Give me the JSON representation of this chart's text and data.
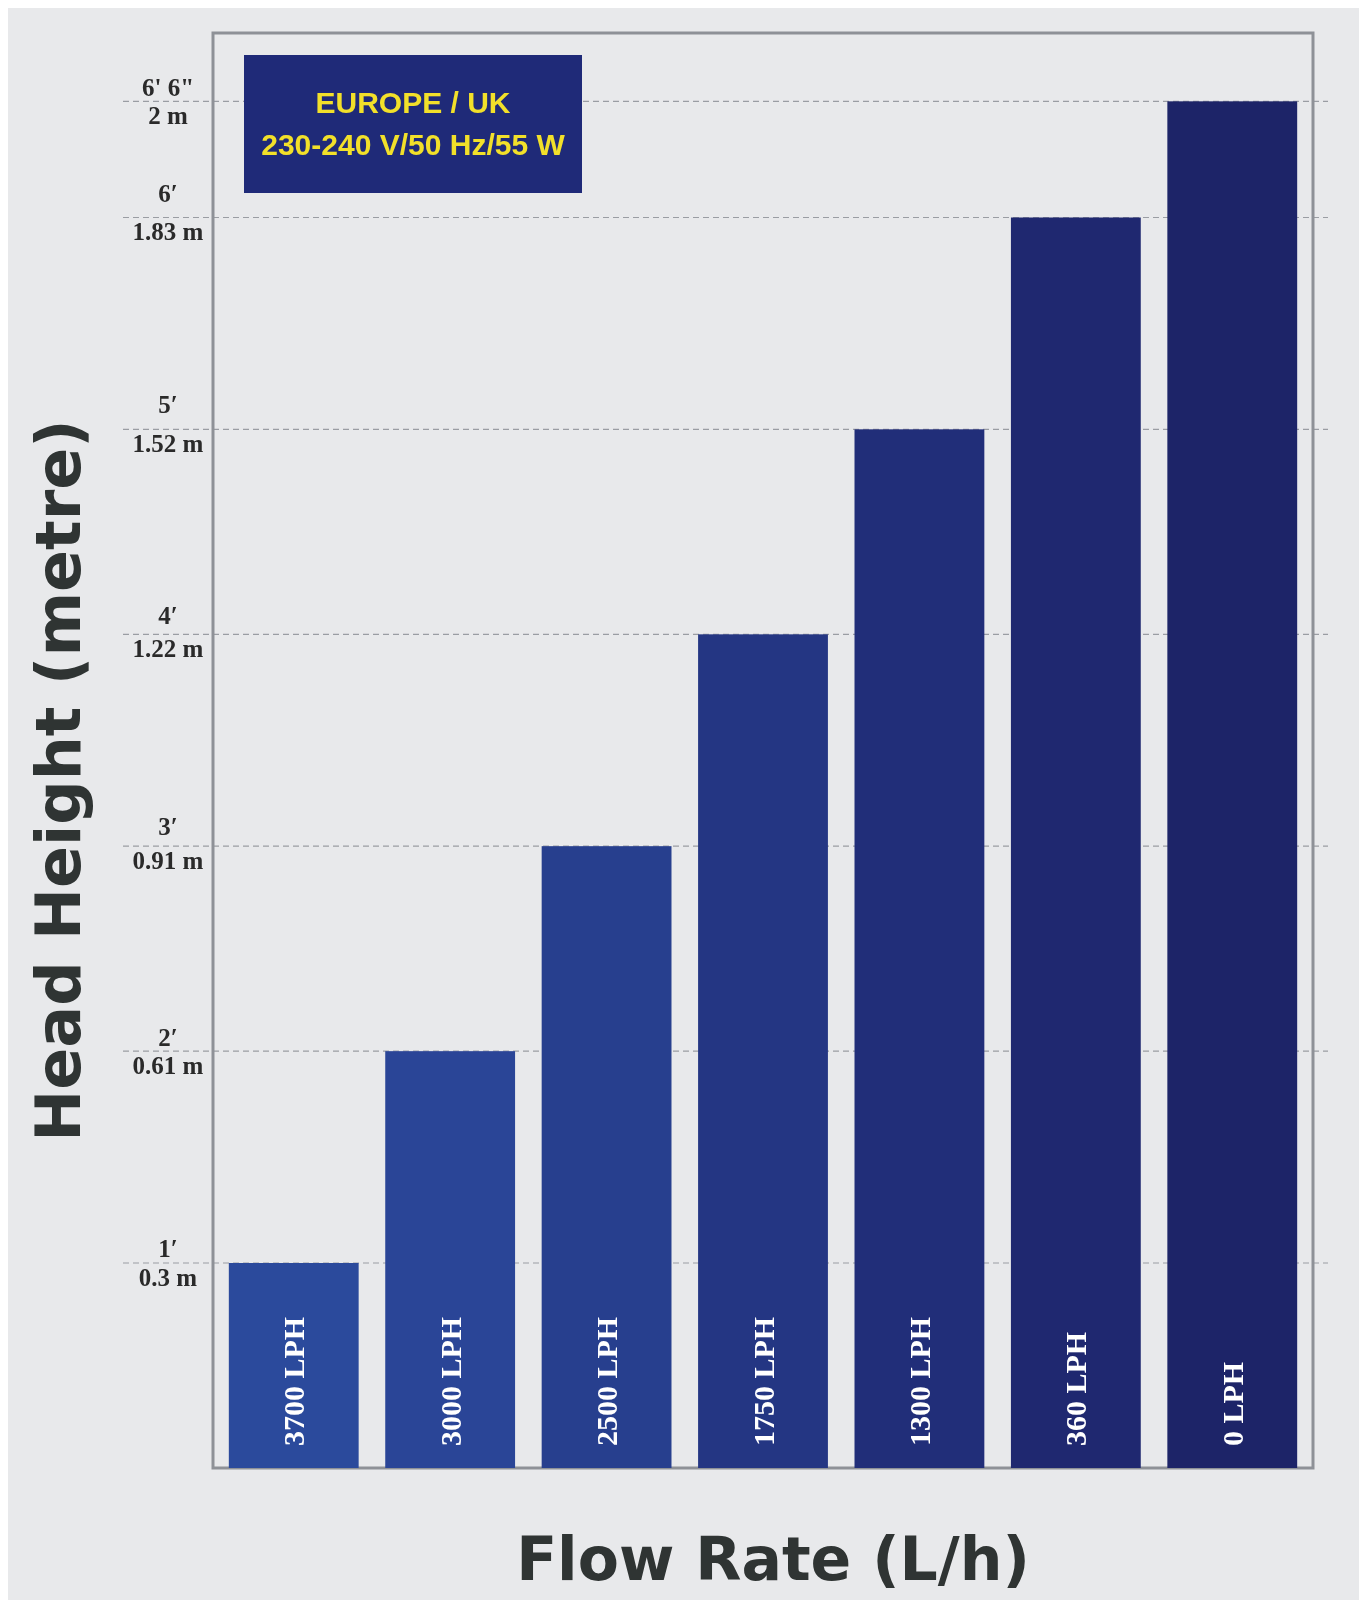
{
  "chart_data": {
    "type": "bar",
    "xlabel": "Flow Rate (L/h)",
    "y2label": "Head Height (metre)",
    "categories": [
      "3700 LPH",
      "3000 LPH",
      "2500 LPH",
      "1750 LPH",
      "1300 LPH",
      "360 LPH",
      "0 LPH"
    ],
    "series": [
      {
        "values": [
          0.3,
          0.61,
          0.91,
          1.22,
          1.52,
          1.83,
          2
        ],
        "axis": "y2"
      }
    ],
    "colors": [
      "#2b4a9c",
      "#2a4597",
      "#273f8e",
      "#243683",
      "#212e79",
      "#1f2870",
      "#1d2468"
    ],
    "ylim": [
      -0.04,
      6.76
    ],
    "yticks": [
      {
        "value": 1,
        "label": "1′"
      },
      {
        "value": 2,
        "label": "2′"
      },
      {
        "value": 3,
        "label": "3′"
      },
      {
        "value": 4,
        "label": "4′"
      },
      {
        "value": 5,
        "label": "5′"
      },
      {
        "value": 6,
        "label": "6′"
      },
      {
        "value": 6.5,
        "label": "6' 6\""
      }
    ],
    "y2lim": [
      0,
      2.1
    ],
    "y2ticks": [
      {
        "value": 0.3,
        "label": "0.3 m"
      },
      {
        "value": 0.61,
        "label": "0.61 m"
      },
      {
        "value": 0.91,
        "label": "0.91 m"
      },
      {
        "value": 1.22,
        "label": "1.22 m"
      },
      {
        "value": 1.52,
        "label": "1.52 m"
      },
      {
        "value": 1.83,
        "label": "1.83 m"
      },
      {
        "value": 2,
        "label": "2 m"
      }
    ],
    "grid": "y",
    "annotations": [
      "EUROPE / UK\n230-240 V/50 Hz/55 W"
    ]
  }
}
